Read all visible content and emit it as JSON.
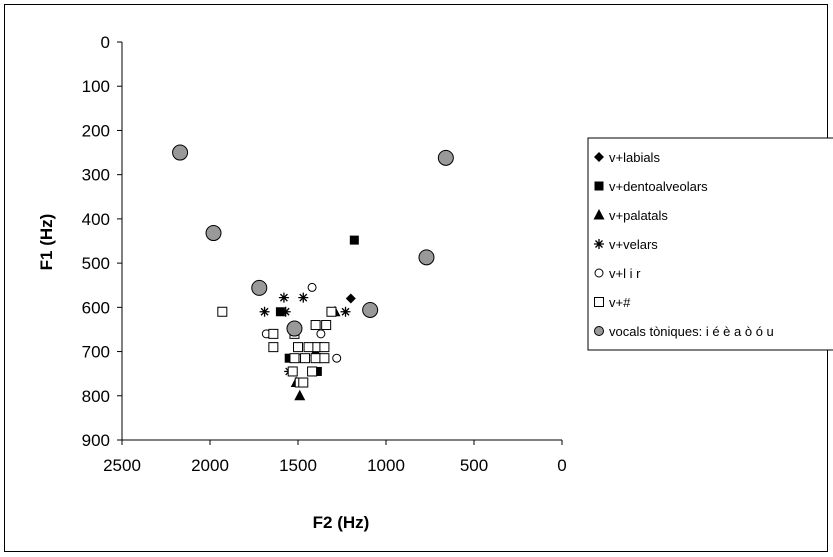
{
  "chart_data": {
    "type": "scatter",
    "title": "",
    "xlabel": "F2 (Hz)",
    "ylabel": "F1 (Hz)",
    "xlim": [
      0,
      2500
    ],
    "ylim": [
      0,
      900
    ],
    "x_reversed": true,
    "y_reversed": true,
    "xticks": [
      "2500",
      "2000",
      "1500",
      "1000",
      "500",
      "0"
    ],
    "yticks": [
      "0",
      "100",
      "200",
      "300",
      "400",
      "500",
      "600",
      "700",
      "800",
      "900"
    ],
    "grid": false,
    "legend_position": "right",
    "series": [
      {
        "name": "v+labials",
        "marker": "diamond",
        "color": "#000000",
        "points": [
          [
            1200,
            580
          ]
        ]
      },
      {
        "name": "v+dentoalveolars",
        "marker": "square-filled",
        "color": "#000000",
        "points": [
          [
            1180,
            448
          ],
          [
            1600,
            610
          ],
          [
            1550,
            715
          ],
          [
            1390,
            745
          ],
          [
            1370,
            715
          ]
        ]
      },
      {
        "name": "v+palatals",
        "marker": "triangle",
        "color": "#000000",
        "points": [
          [
            1290,
            610
          ],
          [
            1490,
            800
          ],
          [
            1510,
            770
          ],
          [
            1400,
            700
          ]
        ]
      },
      {
        "name": "v+velars",
        "marker": "asterisk",
        "color": "#000000",
        "points": [
          [
            1690,
            610
          ],
          [
            1580,
            578
          ],
          [
            1470,
            578
          ],
          [
            1570,
            610
          ],
          [
            1230,
            610
          ],
          [
            1550,
            745
          ]
        ]
      },
      {
        "name": "v+l i r",
        "marker": "circle-open",
        "color": "#000000",
        "points": [
          [
            1420,
            555
          ],
          [
            1680,
            660
          ],
          [
            1520,
            660
          ],
          [
            1370,
            660
          ],
          [
            1280,
            715
          ],
          [
            1490,
            715
          ]
        ]
      },
      {
        "name": "v+#",
        "marker": "square-open",
        "color": "#000000",
        "points": [
          [
            1930,
            610
          ],
          [
            1640,
            660
          ],
          [
            1640,
            690
          ],
          [
            1520,
            660
          ],
          [
            1400,
            640
          ],
          [
            1340,
            640
          ],
          [
            1310,
            610
          ],
          [
            1500,
            690
          ],
          [
            1440,
            690
          ],
          [
            1390,
            690
          ],
          [
            1350,
            690
          ],
          [
            1520,
            715
          ],
          [
            1460,
            715
          ],
          [
            1400,
            715
          ],
          [
            1350,
            715
          ],
          [
            1530,
            745
          ],
          [
            1420,
            745
          ],
          [
            1490,
            770
          ],
          [
            1470,
            770
          ]
        ]
      },
      {
        "name": "vocals tòniques: i é è a ò ó u",
        "marker": "circle-grey",
        "color": "#999999",
        "points": [
          [
            2170,
            250
          ],
          [
            1980,
            432
          ],
          [
            1720,
            556
          ],
          [
            1520,
            648
          ],
          [
            1090,
            606
          ],
          [
            770,
            487
          ],
          [
            660,
            262
          ]
        ]
      }
    ]
  }
}
